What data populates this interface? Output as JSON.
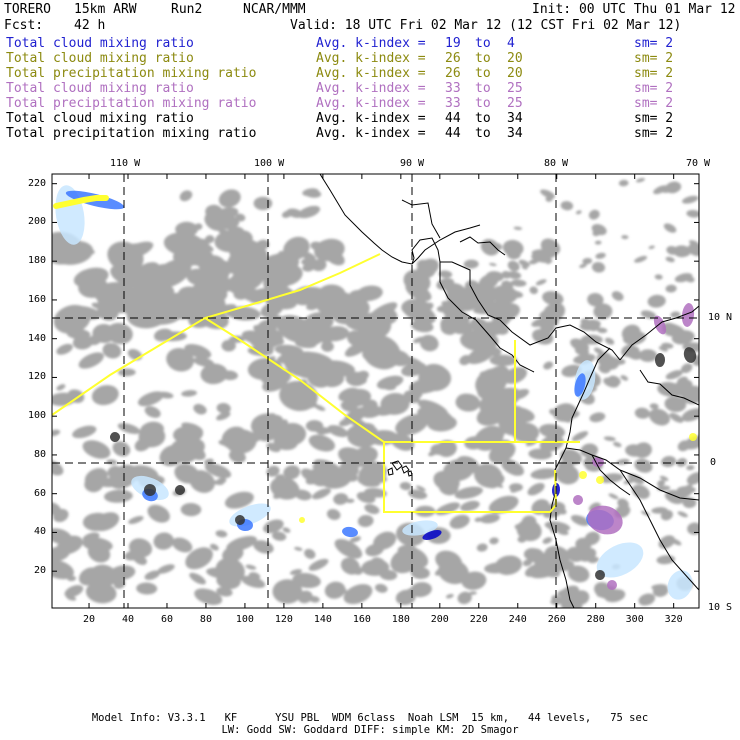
{
  "header": {
    "model": "TORERO",
    "resolution": "15km ARW",
    "run": "Run2",
    "org": "NCAR/MMM",
    "init": "Init: 00 UTC Thu 01 Mar 12",
    "fcst_label": "Fcst:",
    "fcst_value": "42 h",
    "valid": "Valid: 18 UTC Fri 02 Mar 12 (12 CST Fri 02 Mar 12)"
  },
  "legend": [
    {
      "field": "Total cloud mixing ratio",
      "kindex": "Avg. k-index =",
      "a": "19",
      "to": "to",
      "b": "4",
      "sm": "sm= 2",
      "color": "#1f1fd0"
    },
    {
      "field": "Total cloud mixing ratio",
      "kindex": "Avg. k-index =",
      "a": "26",
      "to": "to",
      "b": "20",
      "sm": "sm= 2",
      "color": "#8c8a10"
    },
    {
      "field": "Total precipitation mixing ratio",
      "kindex": "Avg. k-index =",
      "a": "26",
      "to": "to",
      "b": "20",
      "sm": "sm= 2",
      "color": "#8c8a10"
    },
    {
      "field": "Total cloud mixing ratio",
      "kindex": "Avg. k-index =",
      "a": "33",
      "to": "to",
      "b": "25",
      "sm": "sm= 2",
      "color": "#b070c0"
    },
    {
      "field": "Total precipitation mixing ratio",
      "kindex": "Avg. k-index =",
      "a": "33",
      "to": "to",
      "b": "25",
      "sm": "sm= 2",
      "color": "#b070c0"
    },
    {
      "field": "Total cloud mixing ratio",
      "kindex": "Avg. k-index =",
      "a": "44",
      "to": "to",
      "b": "34",
      "sm": "sm= 2",
      "color": "#000000"
    },
    {
      "field": "Total precipitation mixing ratio",
      "kindex": "Avg. k-index =",
      "a": "44",
      "to": "to",
      "b": "34",
      "sm": "sm= 2",
      "color": "#000000"
    }
  ],
  "grid": {
    "x_ticks": [
      20,
      40,
      60,
      80,
      100,
      120,
      140,
      160,
      180,
      200,
      220,
      240,
      260,
      280,
      300,
      320
    ],
    "y_ticks": [
      20,
      40,
      60,
      80,
      100,
      120,
      140,
      160,
      180,
      200,
      220
    ],
    "x_range": [
      1,
      333
    ],
    "y_range": [
      1,
      225
    ],
    "lon_labels": [
      "110 W",
      "100 W",
      "90 W",
      "80 W",
      "70 W"
    ],
    "lat_labels": [
      "10 N",
      "0",
      "10 S"
    ]
  },
  "footer": {
    "line1": "Model Info: V3.3.1   KF      YSU PBL  WDM 6class  Noah LSM  15 km,   44 levels,   75 sec",
    "line2": "LW: Godd SW: Goddard DIFF: simple KM: 2D Smagor"
  },
  "colors": {
    "gray_cloud": "#a6a6a6",
    "yellow_boundary": "#ffff30",
    "coastline": "#000000",
    "light_blue": "#c8e6ff",
    "mid_blue": "#3c78ff",
    "dark_blue": "#0000c8",
    "purple": "#b070c0"
  }
}
